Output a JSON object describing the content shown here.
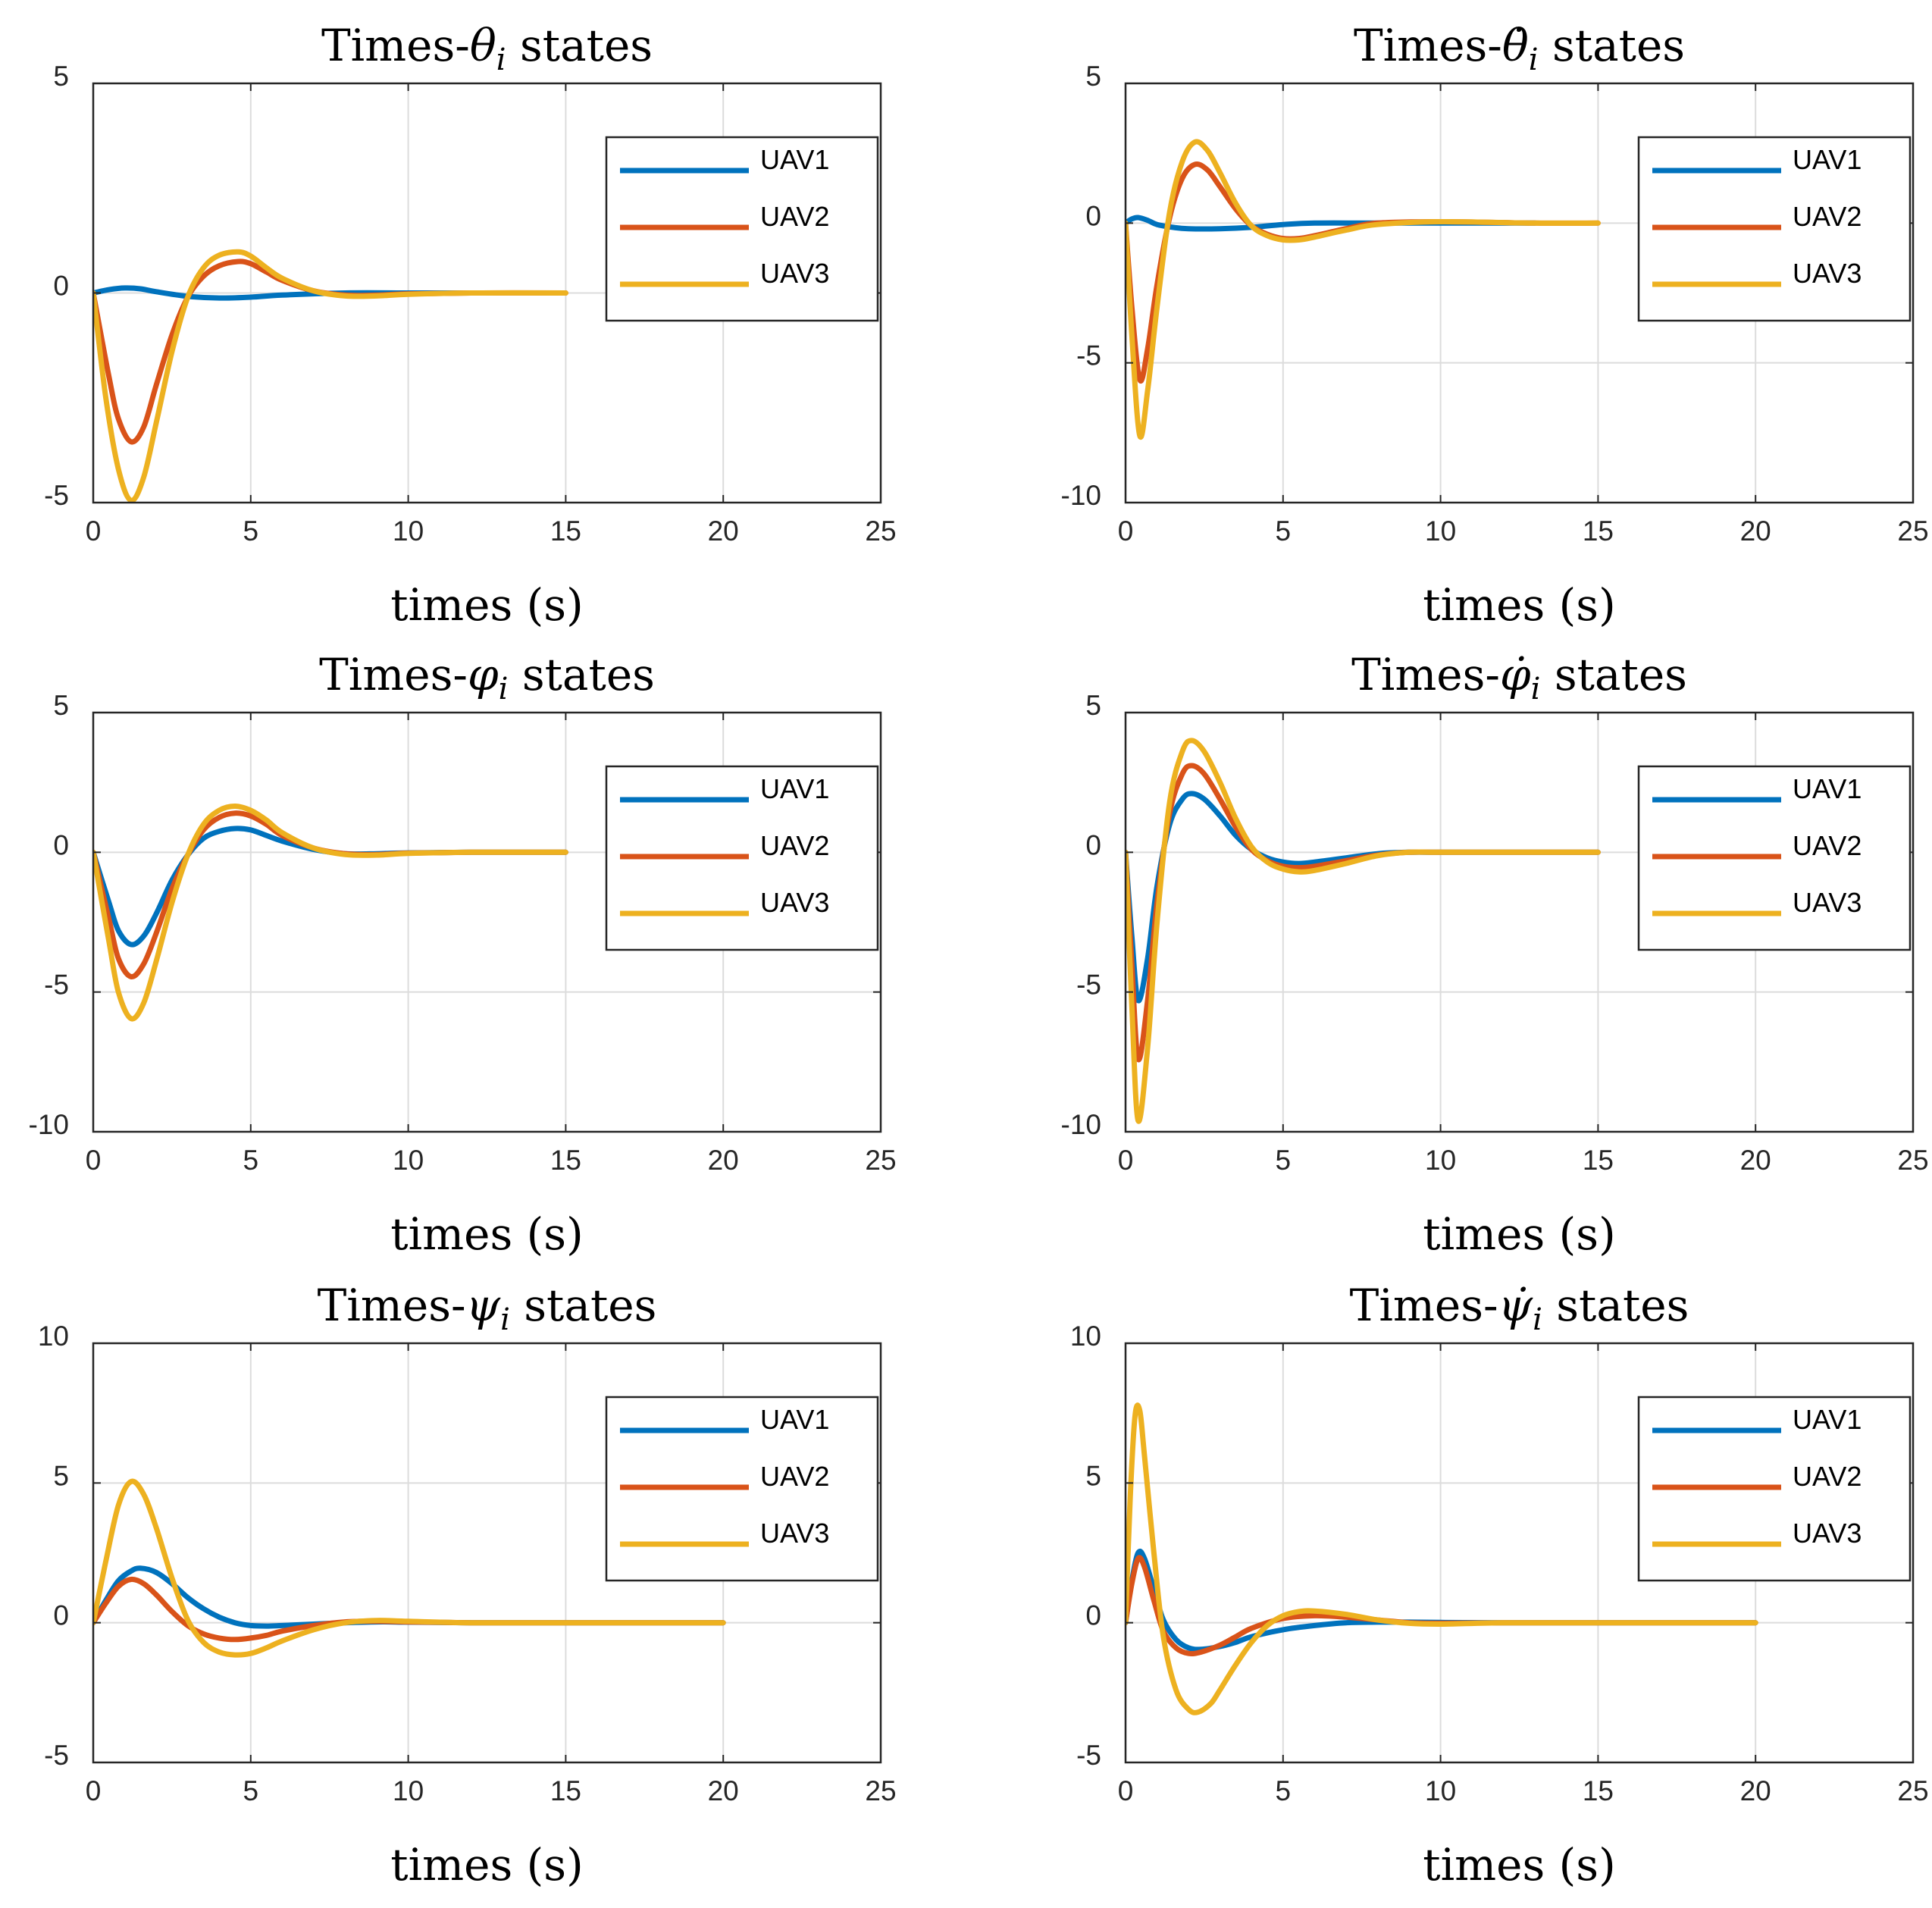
{
  "colors": {
    "UAV1": "#0072BD",
    "UAV2": "#D95319",
    "UAV3": "#EDB120",
    "grid": "#dcdcdc",
    "axis": "#262626"
  },
  "chart_data": [
    {
      "type": "line",
      "title_prefix": "Times-",
      "title_symbol": "θ",
      "title_subscript": "i",
      "title_suffix": " states",
      "xlabel": "times (s)",
      "ylabel": "",
      "xlim": [
        0,
        25
      ],
      "ylim": [
        -5,
        5
      ],
      "xticks": [
        "0",
        "5",
        "10",
        "15",
        "20",
        "25"
      ],
      "yticks": [
        "-5",
        "0",
        "5"
      ],
      "legend": "top-right",
      "grid": true,
      "series": [
        {
          "name": "UAV1",
          "x": [
            0,
            0.5,
            1,
            1.5,
            2,
            3,
            4,
            5,
            6,
            8,
            10,
            12
          ],
          "y": [
            0,
            0.08,
            0.12,
            0.1,
            0.03,
            -0.08,
            -0.12,
            -0.1,
            -0.05,
            0,
            0,
            0
          ]
        },
        {
          "name": "UAV2",
          "x": [
            0,
            0.5,
            0.8,
            1.2,
            1.6,
            2,
            2.5,
            3,
            3.5,
            4,
            4.6,
            5,
            5.5,
            6,
            7,
            8,
            9,
            10,
            12,
            15
          ],
          "y": [
            0,
            -2,
            -3,
            -3.55,
            -3.2,
            -2.2,
            -1,
            -0.1,
            0.4,
            0.65,
            0.75,
            0.7,
            0.5,
            0.3,
            0.05,
            -0.05,
            -0.05,
            -0.02,
            0,
            0
          ]
        },
        {
          "name": "UAV3",
          "x": [
            0,
            0.4,
            0.8,
            1.2,
            1.6,
            2,
            2.5,
            3,
            3.5,
            4,
            4.6,
            5,
            5.5,
            6,
            7,
            8,
            9,
            10,
            12,
            15
          ],
          "y": [
            0,
            -2.5,
            -4.2,
            -4.95,
            -4.4,
            -3.1,
            -1.4,
            -0.1,
            0.6,
            0.9,
            0.98,
            0.88,
            0.6,
            0.35,
            0.05,
            -0.07,
            -0.07,
            -0.03,
            0,
            0
          ]
        }
      ]
    },
    {
      "type": "line",
      "title_prefix": "Times-",
      "title_symbol": "θ̇",
      "title_subscript": "i",
      "title_suffix": " states",
      "xlabel": "times (s)",
      "ylabel": "",
      "xlim": [
        0,
        25
      ],
      "ylim": [
        -10,
        5
      ],
      "xticks": [
        "0",
        "5",
        "10",
        "15",
        "20",
        "25"
      ],
      "yticks": [
        "-10",
        "-5",
        "0",
        "5"
      ],
      "legend": "top-right",
      "grid": true,
      "series": [
        {
          "name": "UAV1",
          "x": [
            0,
            0.2,
            0.4,
            0.7,
            1,
            1.5,
            2,
            3,
            4,
            5,
            6,
            8,
            10,
            13
          ],
          "y": [
            0,
            0.15,
            0.2,
            0.1,
            -0.05,
            -0.15,
            -0.2,
            -0.2,
            -0.15,
            -0.05,
            0,
            0,
            0,
            0
          ]
        },
        {
          "name": "UAV2",
          "x": [
            0,
            0.2,
            0.45,
            0.7,
            1,
            1.4,
            1.8,
            2.2,
            2.6,
            3,
            3.5,
            4,
            4.5,
            5,
            5.5,
            6,
            7,
            8,
            10,
            13,
            15
          ],
          "y": [
            0,
            -3,
            -5.6,
            -4.5,
            -2.2,
            0.2,
            1.6,
            2.1,
            1.9,
            1.3,
            0.5,
            -0.1,
            -0.4,
            -0.55,
            -0.55,
            -0.45,
            -0.2,
            0,
            0.05,
            0,
            0
          ]
        },
        {
          "name": "UAV3",
          "x": [
            0,
            0.2,
            0.45,
            0.7,
            1,
            1.4,
            1.8,
            2.2,
            2.6,
            3,
            3.5,
            4,
            4.5,
            5,
            5.5,
            6,
            7,
            8,
            10,
            13,
            15
          ],
          "y": [
            0,
            -4,
            -7.6,
            -6,
            -3,
            0.4,
            2.2,
            2.9,
            2.6,
            1.8,
            0.7,
            -0.1,
            -0.45,
            -0.6,
            -0.6,
            -0.5,
            -0.25,
            -0.05,
            0.05,
            0,
            0
          ]
        }
      ]
    },
    {
      "type": "line",
      "title_prefix": "Times-",
      "title_symbol": "φ",
      "title_subscript": "i",
      "title_suffix": " states",
      "xlabel": "times (s)",
      "ylabel": "",
      "xlim": [
        0,
        25
      ],
      "ylim": [
        -10,
        5
      ],
      "xticks": [
        "0",
        "5",
        "10",
        "15",
        "20",
        "25"
      ],
      "yticks": [
        "-10",
        "-5",
        "0",
        "5"
      ],
      "legend": "top-right",
      "grid": true,
      "series": [
        {
          "name": "UAV1",
          "x": [
            0,
            0.5,
            0.8,
            1.2,
            1.6,
            2,
            2.5,
            3,
            3.5,
            4,
            4.5,
            5,
            5.5,
            6,
            7,
            8,
            9,
            10,
            12,
            15
          ],
          "y": [
            0,
            -1.8,
            -2.8,
            -3.3,
            -3,
            -2.2,
            -1,
            -0.1,
            0.5,
            0.75,
            0.85,
            0.8,
            0.6,
            0.4,
            0.1,
            -0.05,
            -0.05,
            -0.02,
            0,
            0
          ]
        },
        {
          "name": "UAV2",
          "x": [
            0,
            0.5,
            0.8,
            1.2,
            1.6,
            2,
            2.5,
            3,
            3.5,
            4,
            4.5,
            5,
            5.5,
            6,
            7,
            8,
            9,
            10,
            12,
            15
          ],
          "y": [
            0,
            -2.4,
            -3.8,
            -4.45,
            -4,
            -2.9,
            -1.3,
            -0.1,
            0.8,
            1.25,
            1.4,
            1.3,
            1,
            0.6,
            0.15,
            -0.05,
            -0.08,
            -0.03,
            0,
            0
          ]
        },
        {
          "name": "UAV3",
          "x": [
            0,
            0.5,
            0.8,
            1.2,
            1.6,
            2,
            2.5,
            3,
            3.5,
            4,
            4.5,
            5,
            5.5,
            6,
            7,
            8,
            9,
            10,
            12,
            15
          ],
          "y": [
            0,
            -3.2,
            -5,
            -5.95,
            -5.4,
            -3.9,
            -1.8,
            -0.1,
            1,
            1.5,
            1.65,
            1.5,
            1.15,
            0.7,
            0.15,
            -0.08,
            -0.1,
            -0.04,
            0,
            0
          ]
        }
      ]
    },
    {
      "type": "line",
      "title_prefix": "Times-",
      "title_symbol": "φ̇",
      "title_subscript": "i",
      "title_suffix": " states",
      "xlabel": "times (s)",
      "ylabel": "",
      "xlim": [
        0,
        25
      ],
      "ylim": [
        -10,
        5
      ],
      "xticks": [
        "0",
        "5",
        "10",
        "15",
        "20",
        "25"
      ],
      "yticks": [
        "-10",
        "-5",
        "0",
        "5"
      ],
      "legend": "top-right",
      "grid": true,
      "series": [
        {
          "name": "UAV1",
          "x": [
            0,
            0.2,
            0.4,
            0.7,
            1,
            1.4,
            1.8,
            2.1,
            2.5,
            3,
            3.5,
            4,
            4.5,
            5,
            5.5,
            6,
            7,
            8,
            9,
            10,
            12,
            15
          ],
          "y": [
            0,
            -3,
            -5.3,
            -3.8,
            -1.2,
            1,
            1.9,
            2.1,
            1.9,
            1.3,
            0.6,
            0.1,
            -0.2,
            -0.35,
            -0.4,
            -0.35,
            -0.2,
            -0.05,
            0,
            0,
            0,
            0
          ]
        },
        {
          "name": "UAV2",
          "x": [
            0,
            0.2,
            0.4,
            0.7,
            1,
            1.4,
            1.8,
            2.1,
            2.5,
            3,
            3.5,
            4,
            4.5,
            5,
            5.5,
            6,
            7,
            8,
            9,
            10,
            12,
            15
          ],
          "y": [
            0,
            -4,
            -7.4,
            -5.3,
            -1.8,
            1.4,
            2.8,
            3.1,
            2.8,
            1.9,
            0.9,
            0.1,
            -0.3,
            -0.5,
            -0.55,
            -0.5,
            -0.3,
            -0.1,
            0,
            0,
            0,
            0
          ]
        },
        {
          "name": "UAV3",
          "x": [
            0,
            0.2,
            0.4,
            0.7,
            1,
            1.4,
            1.8,
            2.1,
            2.5,
            3,
            3.5,
            4,
            4.5,
            5,
            5.5,
            6,
            7,
            8,
            9,
            10,
            12,
            15
          ],
          "y": [
            0,
            -5.5,
            -9.6,
            -7,
            -2.5,
            1.8,
            3.6,
            4,
            3.6,
            2.5,
            1.2,
            0.2,
            -0.35,
            -0.6,
            -0.7,
            -0.65,
            -0.4,
            -0.12,
            0,
            0,
            0,
            0
          ]
        }
      ]
    },
    {
      "type": "line",
      "title_prefix": "Times-",
      "title_symbol": "ψ",
      "title_subscript": "i",
      "title_suffix": " states",
      "xlabel": "times (s)",
      "ylabel": "",
      "xlim": [
        0,
        25
      ],
      "ylim": [
        -5,
        10
      ],
      "xticks": [
        "0",
        "5",
        "10",
        "15",
        "20",
        "25"
      ],
      "yticks": [
        "-5",
        "0",
        "5",
        "10"
      ],
      "legend": "top-right",
      "grid": true,
      "series": [
        {
          "name": "UAV1",
          "x": [
            0,
            0.4,
            0.8,
            1.2,
            1.5,
            2,
            2.5,
            3,
            3.5,
            4,
            4.5,
            5,
            5.5,
            6,
            7,
            8,
            9,
            10,
            12,
            15,
            20
          ],
          "y": [
            0,
            0.8,
            1.5,
            1.85,
            1.95,
            1.8,
            1.4,
            0.9,
            0.5,
            0.2,
            0,
            -0.1,
            -0.12,
            -0.1,
            -0.05,
            0,
            0.03,
            0.02,
            0,
            0,
            0
          ]
        },
        {
          "name": "UAV2",
          "x": [
            0,
            0.4,
            0.8,
            1.2,
            1.6,
            2,
            2.5,
            3,
            3.5,
            4,
            4.5,
            5,
            5.5,
            6,
            7,
            8,
            9,
            10,
            12,
            15,
            20
          ],
          "y": [
            0,
            0.7,
            1.3,
            1.55,
            1.4,
            1,
            0.4,
            -0.1,
            -0.4,
            -0.55,
            -0.6,
            -0.55,
            -0.45,
            -0.3,
            -0.1,
            0.03,
            0.05,
            0.03,
            0,
            0,
            0
          ]
        },
        {
          "name": "UAV3",
          "x": [
            0,
            0.4,
            0.8,
            1.2,
            1.6,
            2,
            2.5,
            3,
            3.5,
            4,
            4.5,
            5,
            5.5,
            6,
            7,
            8,
            9,
            10,
            12,
            15,
            20
          ],
          "y": [
            0,
            2.2,
            4.2,
            5.05,
            4.6,
            3.4,
            1.6,
            0.1,
            -0.7,
            -1.05,
            -1.15,
            -1.1,
            -0.9,
            -0.65,
            -0.25,
            0,
            0.08,
            0.05,
            0,
            0,
            0
          ]
        }
      ]
    },
    {
      "type": "line",
      "title_prefix": "Times-",
      "title_symbol": "ψ̇",
      "title_subscript": "i",
      "title_suffix": " states",
      "xlabel": "times (s)",
      "ylabel": "",
      "xlim": [
        0,
        25
      ],
      "ylim": [
        -5,
        10
      ],
      "xticks": [
        "0",
        "5",
        "10",
        "15",
        "20",
        "25"
      ],
      "yticks": [
        "-5",
        "0",
        "5",
        "10"
      ],
      "legend": "top-right",
      "grid": true,
      "series": [
        {
          "name": "UAV1",
          "x": [
            0,
            0.2,
            0.4,
            0.6,
            0.9,
            1.2,
            1.6,
            2,
            2.4,
            3,
            3.5,
            4,
            5,
            6,
            7,
            8,
            9,
            10,
            12,
            15,
            20
          ],
          "y": [
            0,
            1.5,
            2.5,
            2.3,
            1.2,
            0.1,
            -0.6,
            -0.9,
            -0.95,
            -0.85,
            -0.7,
            -0.5,
            -0.25,
            -0.1,
            0,
            0.02,
            0.02,
            0.01,
            0,
            0,
            0
          ]
        },
        {
          "name": "UAV2",
          "x": [
            0,
            0.2,
            0.4,
            0.6,
            0.9,
            1.2,
            1.6,
            2,
            2.4,
            3,
            3.5,
            4,
            5,
            6,
            7,
            8,
            9,
            10,
            12,
            15,
            20
          ],
          "y": [
            0,
            1.4,
            2.3,
            2,
            0.8,
            -0.3,
            -0.9,
            -1.1,
            -1.05,
            -0.8,
            -0.5,
            -0.2,
            0.15,
            0.25,
            0.2,
            0.1,
            0,
            -0.02,
            0,
            0,
            0
          ]
        },
        {
          "name": "UAV3",
          "x": [
            0,
            0.15,
            0.3,
            0.45,
            0.6,
            0.9,
            1.2,
            1.6,
            2,
            2.3,
            2.7,
            3,
            3.5,
            4,
            4.5,
            5,
            5.5,
            6,
            7,
            8,
            9,
            10,
            12,
            15,
            20
          ],
          "y": [
            0,
            4.5,
            7.4,
            7.6,
            6,
            2.5,
            -0.5,
            -2.4,
            -3.1,
            -3.2,
            -2.9,
            -2.4,
            -1.5,
            -0.7,
            -0.1,
            0.25,
            0.4,
            0.42,
            0.3,
            0.1,
            -0.02,
            -0.05,
            0,
            0,
            0
          ]
        }
      ]
    }
  ]
}
